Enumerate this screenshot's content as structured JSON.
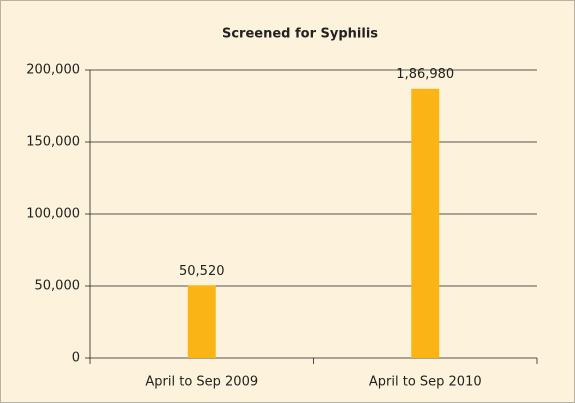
{
  "chart_data": {
    "type": "bar",
    "title": "Screened for Syphilis",
    "categories": [
      "April to Sep 2009",
      "April to Sep 2010"
    ],
    "values": [
      50520,
      186980
    ],
    "value_labels": [
      "50,520",
      "1,86,980"
    ],
    "color": "#fbb416",
    "ylim": [
      0,
      200000
    ],
    "yticks": [
      0,
      {
        "value": 50000,
        "label": "50,000"
      },
      {
        "value": 100000,
        "label": "100,000"
      },
      {
        "value": 150000,
        "label": "150,000"
      },
      {
        "value": 200000,
        "label": "200,000"
      }
    ],
    "grid": true
  }
}
